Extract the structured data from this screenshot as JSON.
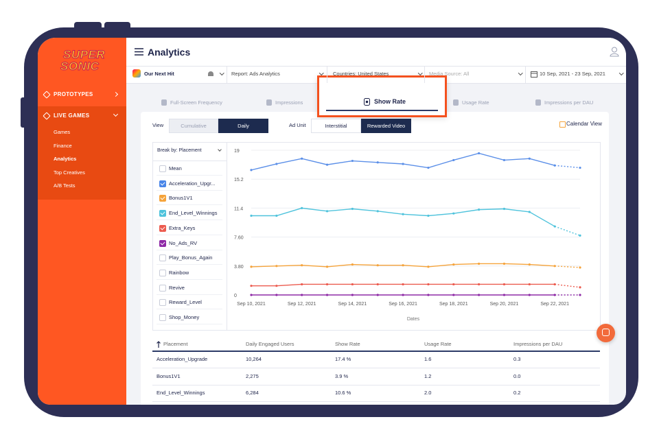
{
  "sidebar": {
    "logo": [
      "SUPER",
      "SONIC"
    ],
    "sections": [
      {
        "label": "PROTOTYPES"
      },
      {
        "label": "LIVE GAMES",
        "items": [
          "Games",
          "Finance",
          "Analytics",
          "Top Creatives",
          "A/B Tests"
        ]
      }
    ]
  },
  "header": {
    "title": "Analytics"
  },
  "filters": {
    "app": "Our Next Hit",
    "report": "Report: Ads Analytics",
    "countries": "Countries: United States",
    "media_source": "Media Source: All",
    "date_range": "10 Sep, 2021 - 23 Sep, 2021"
  },
  "tabs": [
    "Full-Screen Frequency",
    "Impressions",
    "Show Rate",
    "Usage Rate",
    "Impressions per DAU"
  ],
  "controls": {
    "view_label": "View",
    "view_options": [
      "Cumulative",
      "Daily"
    ],
    "ad_unit_label": "Ad Unit",
    "ad_unit_options": [
      "Interstitial",
      "Rewarded Video"
    ],
    "calendar": "Calendar View"
  },
  "breakdown": {
    "label": "Break by: Placement",
    "items": [
      {
        "label": "Mean",
        "checked": false
      },
      {
        "label": "Acceleration_Upgr...",
        "checked": true,
        "color": "#4a86e8"
      },
      {
        "label": "Bonus1V1",
        "checked": true,
        "color": "#f5a33a"
      },
      {
        "label": "End_Level_Winnings",
        "checked": true,
        "color": "#4fc3dc"
      },
      {
        "label": "Extra_Keys",
        "checked": true,
        "color": "#ec5b4f"
      },
      {
        "label": "No_Ads_RV",
        "checked": true,
        "color": "#8e2aa6"
      },
      {
        "label": "Play_Bonus_Again",
        "checked": false
      },
      {
        "label": "Rainbow",
        "checked": false
      },
      {
        "label": "Revive",
        "checked": false
      },
      {
        "label": "Reward_Level",
        "checked": false
      },
      {
        "label": "Shop_Money",
        "checked": false
      }
    ]
  },
  "chart_data": {
    "type": "line",
    "x_label": "Dates",
    "categories": [
      "Sep 10, 2021",
      null,
      "Sep 12, 2021",
      null,
      "Sep 14, 2021",
      null,
      "Sep 16, 2021",
      null,
      "Sep 18, 2021",
      null,
      "Sep 20, 2021",
      null,
      "Sep 22, 2021",
      null
    ],
    "series": [
      {
        "color": "#5b8fe8",
        "values": [
          16.4,
          17.2,
          17.9,
          17.1,
          17.6,
          17.4,
          17.2,
          16.7,
          17.7,
          18.6,
          17.7,
          17.9,
          17.0,
          16.7
        ]
      },
      {
        "color": "#4fc3dc",
        "values": [
          10.4,
          10.4,
          11.4,
          11.0,
          11.3,
          11.0,
          10.6,
          10.4,
          10.7,
          11.2,
          11.3,
          10.9,
          9.0,
          7.8
        ]
      },
      {
        "color": "#f5a33a",
        "values": [
          3.7,
          3.8,
          3.9,
          3.7,
          4.0,
          3.9,
          3.9,
          3.7,
          4.0,
          4.1,
          4.1,
          4.0,
          3.8,
          3.6
        ]
      },
      {
        "color": "#ec5b4f",
        "values": [
          1.2,
          1.2,
          1.4,
          1.4,
          1.4,
          1.4,
          1.4,
          1.4,
          1.4,
          1.4,
          1.4,
          1.4,
          1.4,
          1.0
        ]
      },
      {
        "color": "#8e2aa6",
        "values": [
          0,
          0,
          0,
          0,
          0,
          0,
          0,
          0,
          0,
          0,
          0,
          0,
          0,
          0
        ]
      }
    ],
    "ylim": [
      0,
      19
    ],
    "yticks": [
      0,
      {
        "value": 3.8,
        "label": "3.80"
      },
      {
        "value": 7.6,
        "label": "7.60"
      },
      11.4,
      15.2,
      19
    ],
    "grid": true,
    "dashed_last_segment": true
  },
  "table": {
    "header": [
      "Placement",
      "Daily Engaged Users",
      "Show Rate",
      "Usage Rate",
      "Impressions per DAU"
    ],
    "rows": [
      [
        "Acceleration_Upgrade",
        "10,264",
        "17.4 %",
        "1.6",
        "0.3"
      ],
      [
        "Bonus1V1",
        "2,275",
        "3.9 %",
        "1.2",
        "0.0"
      ],
      [
        "End_Level_Winnings",
        "6,284",
        "10.6 %",
        "2.0",
        "0.2"
      ]
    ]
  }
}
